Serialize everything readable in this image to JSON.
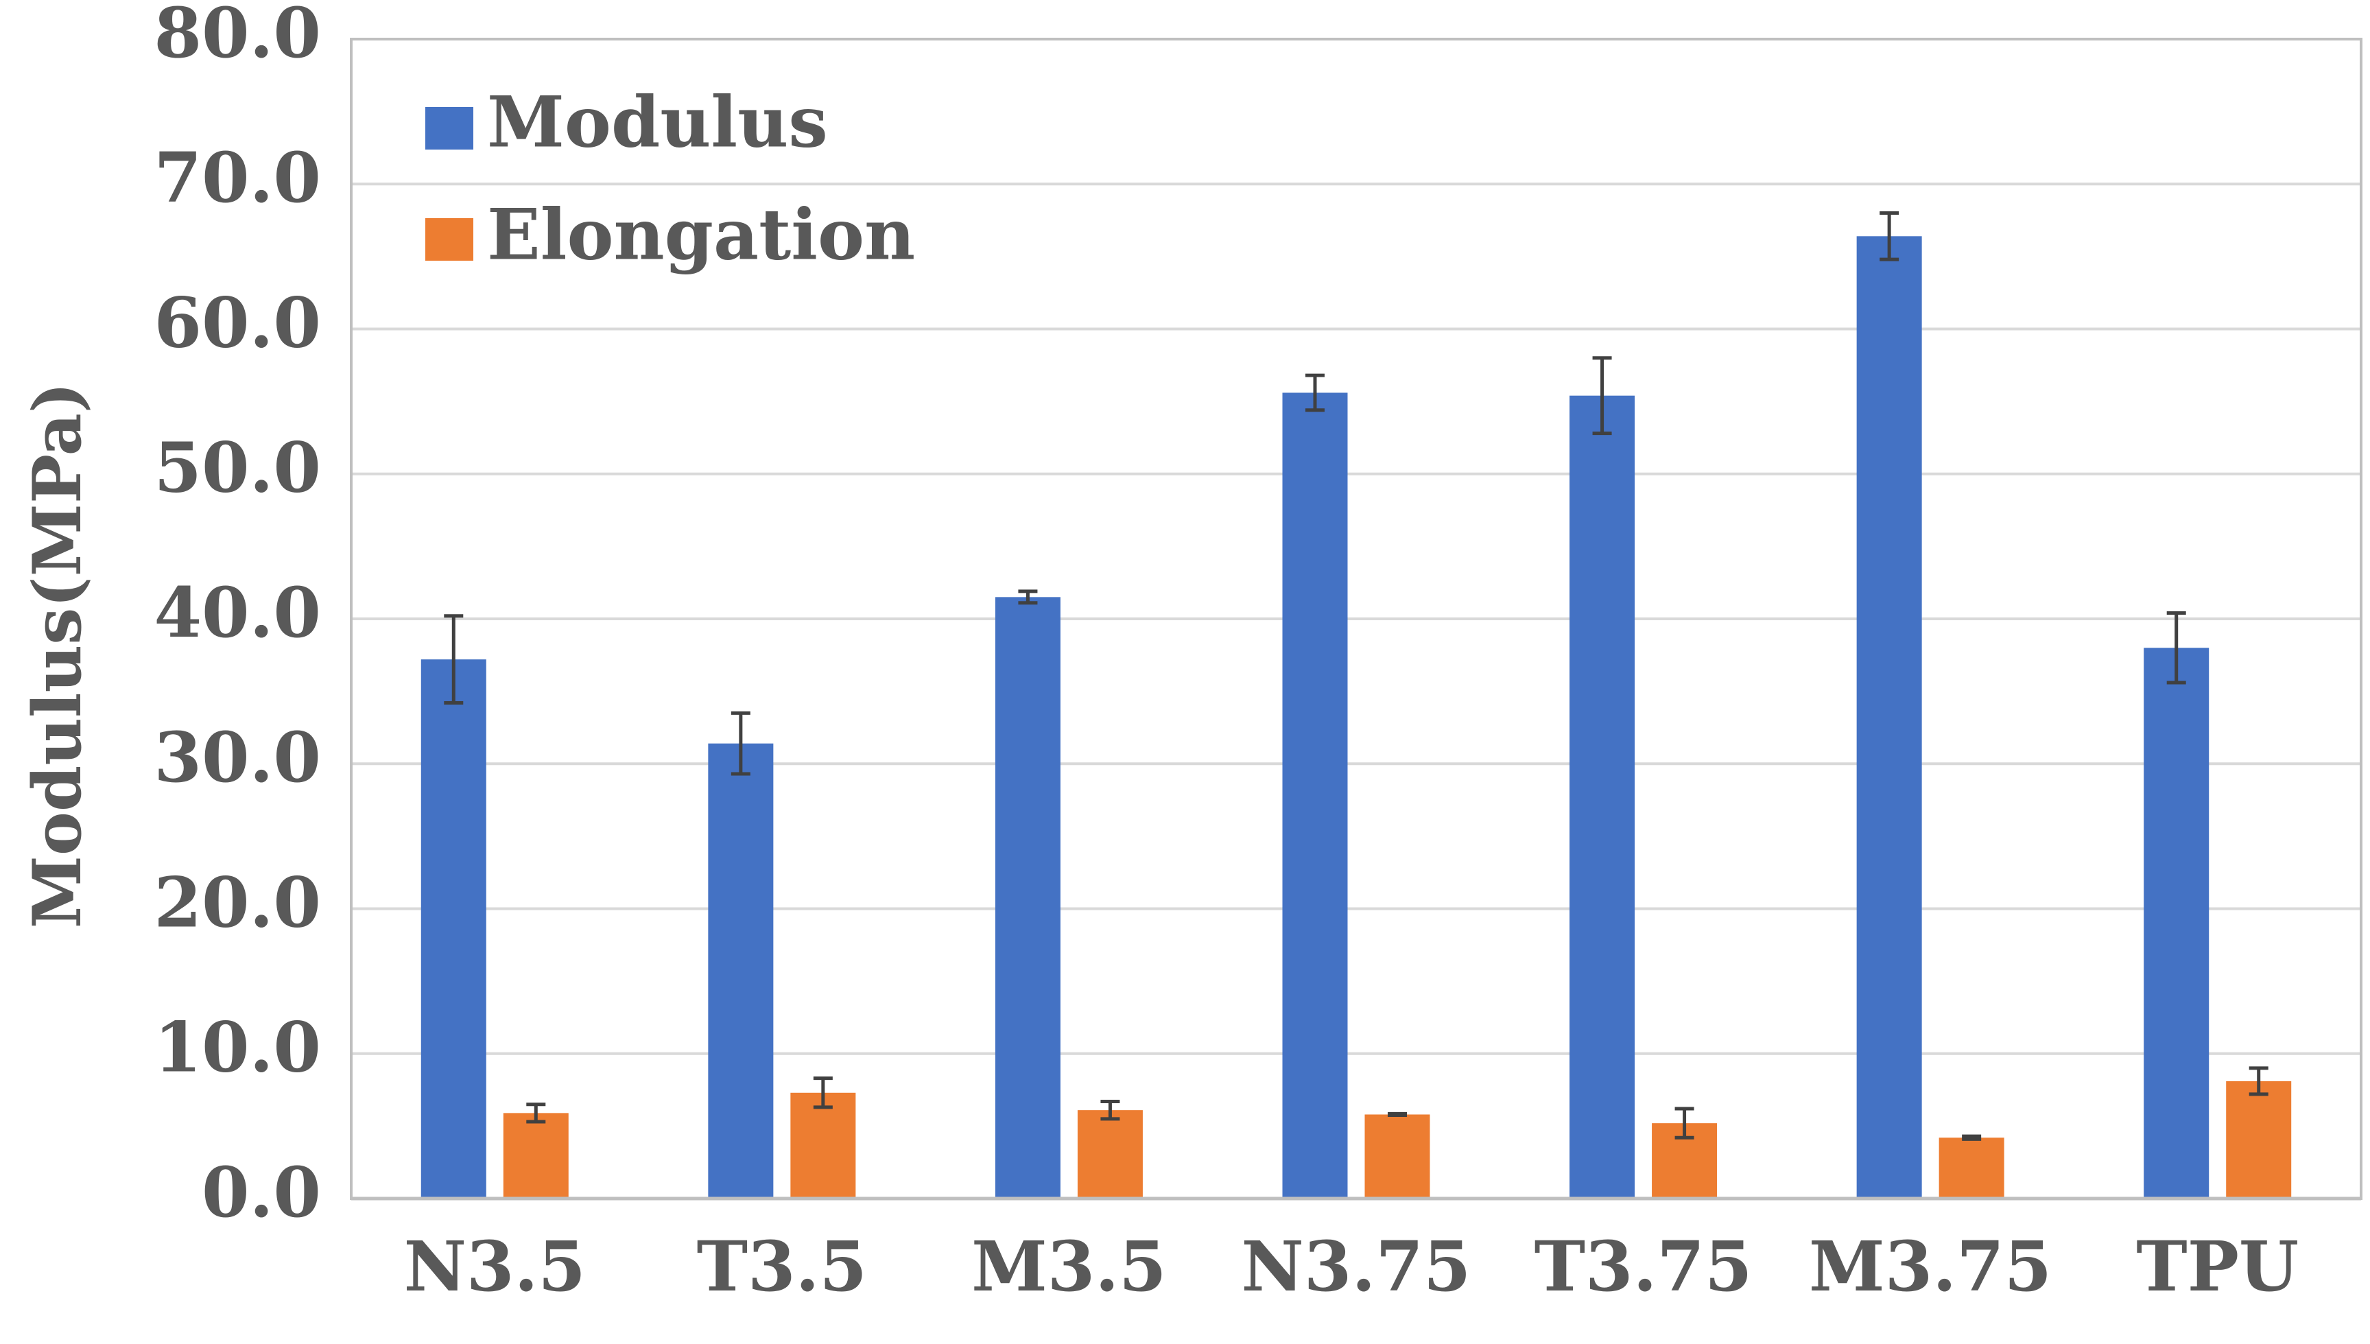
{
  "chart_data": {
    "type": "bar",
    "ylabel": "Modulus(MPa)",
    "xlabel": "",
    "ylim": [
      0,
      80
    ],
    "yticks": [
      "0.0",
      "10.0",
      "20.0",
      "30.0",
      "40.0",
      "50.0",
      "60.0",
      "70.0",
      "80.0"
    ],
    "grid": true,
    "legend_position": "top-left",
    "categories": [
      "N3.5",
      "T3.5",
      "M3.5",
      "N3.75",
      "T3.75",
      "M3.75",
      "TPU"
    ],
    "series": [
      {
        "name": "Modulus",
        "color": "#4472C4",
        "values": [
          37.2,
          31.4,
          41.5,
          55.6,
          55.4,
          66.4,
          38.0
        ],
        "errors": [
          3.0,
          2.1,
          0.4,
          1.2,
          2.6,
          1.6,
          2.4
        ]
      },
      {
        "name": "Elongation",
        "color": "#ED7D31",
        "values": [
          5.9,
          7.3,
          6.1,
          5.8,
          5.2,
          4.2,
          8.1
        ],
        "errors": [
          0.6,
          1.0,
          0.6,
          0.05,
          1.0,
          0.1,
          0.9
        ]
      }
    ],
    "colors": {
      "gridline": "#D9D9D9",
      "axis": "#BFBFBF",
      "text": "#595959",
      "errorbar": "#404040"
    }
  }
}
